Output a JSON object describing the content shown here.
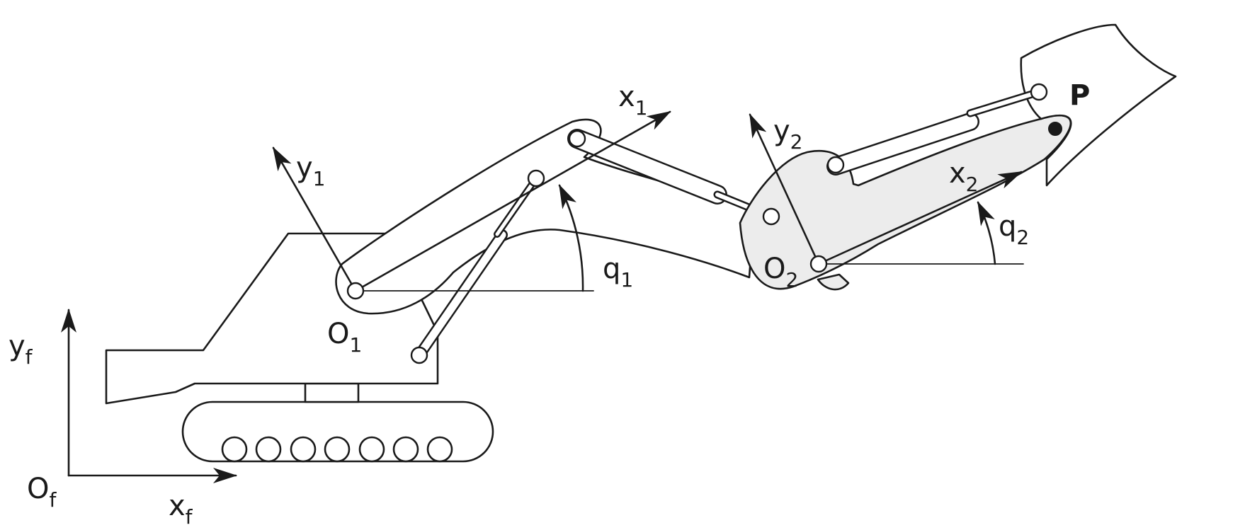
{
  "frames": {
    "base": {
      "origin": "O",
      "origin_sub": "f",
      "x": "x",
      "x_sub": "f",
      "y": "y",
      "y_sub": "f"
    },
    "boom": {
      "origin": "O",
      "origin_sub": "1",
      "x": "x",
      "x_sub": "1",
      "y": "y",
      "y_sub": "1"
    },
    "arm": {
      "origin": "O",
      "origin_sub": "2",
      "x": "x",
      "x_sub": "2",
      "y": "y",
      "y_sub": "2"
    }
  },
  "angles": {
    "q1": {
      "symbol": "q",
      "sub": "1"
    },
    "q2": {
      "symbol": "q",
      "sub": "2"
    }
  },
  "point_p": "P"
}
